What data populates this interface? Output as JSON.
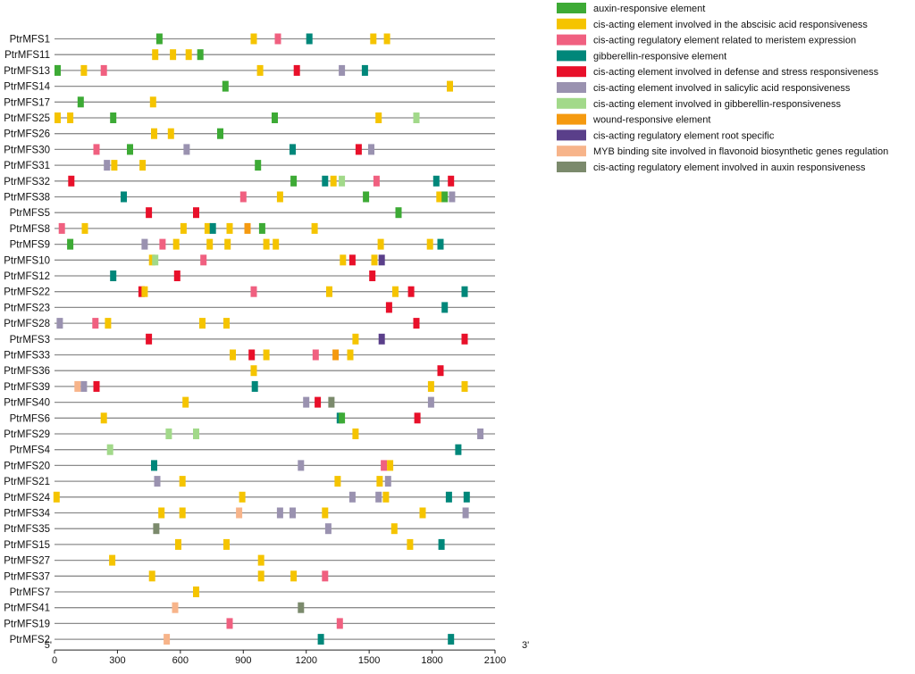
{
  "chart_data": {
    "type": "motif-map",
    "x_start_label": "5'",
    "x_end_label": "3'",
    "xlim": [
      0,
      2100
    ],
    "x_ticks": [
      0,
      300,
      600,
      900,
      1200,
      1500,
      1800,
      2100
    ],
    "legend": [
      {
        "id": "auxin",
        "label": "auxin-responsive element",
        "color": "#3daa35"
      },
      {
        "id": "aba",
        "label": "cis-acting element involved in the abscisic acid responsiveness",
        "color": "#f5c400"
      },
      {
        "id": "meristem",
        "label": "cis-acting regulatory element related to meristem expression",
        "color": "#f06080"
      },
      {
        "id": "gib",
        "label": "gibberellin-responsive element",
        "color": "#00877a"
      },
      {
        "id": "defense",
        "label": "cis-acting element involved in defense and stress responsiveness",
        "color": "#e8102a"
      },
      {
        "id": "sa",
        "label": "cis-acting element involved in salicylic acid responsiveness",
        "color": "#9a92b0"
      },
      {
        "id": "gibresp",
        "label": "cis-acting element involved in gibberellin-responsiveness",
        "color": "#a2d98a"
      },
      {
        "id": "wound",
        "label": "wound-responsive element",
        "color": "#f59a10"
      },
      {
        "id": "root",
        "label": "cis-acting regulatory element root specific",
        "color": "#5a3f8a"
      },
      {
        "id": "myb",
        "label": "MYB binding site involved in flavonoid biosynthetic genes regulation",
        "color": "#f7b48a"
      },
      {
        "id": "auxreg",
        "label": "cis-acting regulatory element involved in auxin responsiveness",
        "color": "#7b8a6c"
      }
    ],
    "genes": [
      {
        "name": "PtrMFS1",
        "motifs": [
          [
            500,
            "auxin"
          ],
          [
            950,
            "aba"
          ],
          [
            1065,
            "meristem"
          ],
          [
            1215,
            "gib"
          ],
          [
            1520,
            "aba"
          ],
          [
            1585,
            "aba"
          ]
        ]
      },
      {
        "name": "PtrMFS11",
        "motifs": [
          [
            480,
            "aba"
          ],
          [
            565,
            "aba"
          ],
          [
            640,
            "aba"
          ],
          [
            695,
            "auxin"
          ]
        ]
      },
      {
        "name": "PtrMFS13",
        "motifs": [
          [
            15,
            "auxin"
          ],
          [
            140,
            "aba"
          ],
          [
            235,
            "meristem"
          ],
          [
            980,
            "aba"
          ],
          [
            1155,
            "defense"
          ],
          [
            1370,
            "sa"
          ],
          [
            1480,
            "gib"
          ]
        ]
      },
      {
        "name": "PtrMFS14",
        "motifs": [
          [
            815,
            "auxin"
          ],
          [
            1885,
            "aba"
          ]
        ]
      },
      {
        "name": "PtrMFS17",
        "motifs": [
          [
            125,
            "auxin"
          ],
          [
            470,
            "aba"
          ]
        ]
      },
      {
        "name": "PtrMFS25",
        "motifs": [
          [
            15,
            "aba"
          ],
          [
            75,
            "aba"
          ],
          [
            280,
            "auxin"
          ],
          [
            1050,
            "auxin"
          ],
          [
            1545,
            "aba"
          ],
          [
            1725,
            "gibresp"
          ]
        ]
      },
      {
        "name": "PtrMFS26",
        "motifs": [
          [
            475,
            "aba"
          ],
          [
            555,
            "aba"
          ],
          [
            790,
            "auxin"
          ]
        ]
      },
      {
        "name": "PtrMFS30",
        "motifs": [
          [
            200,
            "meristem"
          ],
          [
            360,
            "auxin"
          ],
          [
            630,
            "sa"
          ],
          [
            1135,
            "gib"
          ],
          [
            1450,
            "defense"
          ],
          [
            1510,
            "sa"
          ]
        ]
      },
      {
        "name": "PtrMFS31",
        "motifs": [
          [
            250,
            "sa"
          ],
          [
            285,
            "aba"
          ],
          [
            420,
            "aba"
          ],
          [
            970,
            "auxin"
          ]
        ]
      },
      {
        "name": "PtrMFS32",
        "motifs": [
          [
            80,
            "defense"
          ],
          [
            1140,
            "auxin"
          ],
          [
            1290,
            "gib"
          ],
          [
            1330,
            "aba"
          ],
          [
            1370,
            "gibresp"
          ],
          [
            1535,
            "meristem"
          ],
          [
            1820,
            "gib"
          ],
          [
            1890,
            "defense"
          ]
        ]
      },
      {
        "name": "PtrMFS38",
        "motifs": [
          [
            330,
            "gib"
          ],
          [
            900,
            "meristem"
          ],
          [
            1075,
            "aba"
          ],
          [
            1485,
            "auxin"
          ],
          [
            1835,
            "aba"
          ],
          [
            1860,
            "auxin"
          ],
          [
            1895,
            "sa"
          ]
        ]
      },
      {
        "name": "PtrMFS5",
        "motifs": [
          [
            450,
            "defense"
          ],
          [
            675,
            "defense"
          ],
          [
            1640,
            "auxin"
          ]
        ]
      },
      {
        "name": "PtrMFS8",
        "motifs": [
          [
            35,
            "meristem"
          ],
          [
            145,
            "aba"
          ],
          [
            615,
            "aba"
          ],
          [
            730,
            "aba"
          ],
          [
            755,
            "gib"
          ],
          [
            835,
            "aba"
          ],
          [
            920,
            "wound"
          ],
          [
            990,
            "auxin"
          ],
          [
            1240,
            "aba"
          ]
        ]
      },
      {
        "name": "PtrMFS9",
        "motifs": [
          [
            75,
            "auxin"
          ],
          [
            430,
            "sa"
          ],
          [
            515,
            "meristem"
          ],
          [
            580,
            "aba"
          ],
          [
            740,
            "aba"
          ],
          [
            825,
            "aba"
          ],
          [
            1010,
            "aba"
          ],
          [
            1055,
            "aba"
          ],
          [
            1555,
            "aba"
          ],
          [
            1790,
            "aba"
          ],
          [
            1840,
            "gib"
          ]
        ]
      },
      {
        "name": "PtrMFS10",
        "motifs": [
          [
            465,
            "aba"
          ],
          [
            480,
            "gibresp"
          ],
          [
            710,
            "meristem"
          ],
          [
            1375,
            "aba"
          ],
          [
            1420,
            "defense"
          ],
          [
            1525,
            "aba"
          ],
          [
            1560,
            "root"
          ]
        ]
      },
      {
        "name": "PtrMFS12",
        "motifs": [
          [
            280,
            "gib"
          ],
          [
            585,
            "defense"
          ],
          [
            1515,
            "defense"
          ]
        ]
      },
      {
        "name": "PtrMFS22",
        "motifs": [
          [
            415,
            "defense"
          ],
          [
            430,
            "aba"
          ],
          [
            950,
            "meristem"
          ],
          [
            1310,
            "aba"
          ],
          [
            1625,
            "aba"
          ],
          [
            1700,
            "defense"
          ],
          [
            1955,
            "gib"
          ]
        ]
      },
      {
        "name": "PtrMFS23",
        "motifs": [
          [
            1595,
            "defense"
          ],
          [
            1860,
            "gib"
          ]
        ]
      },
      {
        "name": "PtrMFS28",
        "motifs": [
          [
            25,
            "sa"
          ],
          [
            195,
            "meristem"
          ],
          [
            255,
            "aba"
          ],
          [
            705,
            "aba"
          ],
          [
            820,
            "aba"
          ],
          [
            1725,
            "defense"
          ]
        ]
      },
      {
        "name": "PtrMFS3",
        "motifs": [
          [
            450,
            "defense"
          ],
          [
            1435,
            "aba"
          ],
          [
            1560,
            "root"
          ],
          [
            1955,
            "defense"
          ]
        ]
      },
      {
        "name": "PtrMFS33",
        "motifs": [
          [
            850,
            "aba"
          ],
          [
            940,
            "defense"
          ],
          [
            1010,
            "aba"
          ],
          [
            1245,
            "meristem"
          ],
          [
            1340,
            "wound"
          ],
          [
            1410,
            "aba"
          ]
        ]
      },
      {
        "name": "PtrMFS36",
        "motifs": [
          [
            950,
            "aba"
          ],
          [
            1840,
            "defense"
          ]
        ]
      },
      {
        "name": "PtrMFS39",
        "motifs": [
          [
            110,
            "myb"
          ],
          [
            140,
            "sa"
          ],
          [
            200,
            "defense"
          ],
          [
            955,
            "gib"
          ],
          [
            1795,
            "aba"
          ],
          [
            1955,
            "aba"
          ]
        ]
      },
      {
        "name": "PtrMFS40",
        "motifs": [
          [
            625,
            "aba"
          ],
          [
            1200,
            "sa"
          ],
          [
            1255,
            "defense"
          ],
          [
            1320,
            "auxreg"
          ],
          [
            1795,
            "sa"
          ]
        ]
      },
      {
        "name": "PtrMFS6",
        "motifs": [
          [
            235,
            "aba"
          ],
          [
            1360,
            "gib"
          ],
          [
            1370,
            "auxin"
          ],
          [
            1730,
            "defense"
          ]
        ]
      },
      {
        "name": "PtrMFS29",
        "motifs": [
          [
            545,
            "gibresp"
          ],
          [
            675,
            "gibresp"
          ],
          [
            1435,
            "aba"
          ],
          [
            2030,
            "sa"
          ]
        ]
      },
      {
        "name": "PtrMFS4",
        "motifs": [
          [
            265,
            "gibresp"
          ],
          [
            1925,
            "gib"
          ]
        ]
      },
      {
        "name": "PtrMFS20",
        "motifs": [
          [
            475,
            "gib"
          ],
          [
            1175,
            "sa"
          ],
          [
            1570,
            "meristem"
          ],
          [
            1600,
            "aba"
          ]
        ]
      },
      {
        "name": "PtrMFS21",
        "motifs": [
          [
            490,
            "sa"
          ],
          [
            610,
            "aba"
          ],
          [
            1350,
            "aba"
          ],
          [
            1550,
            "aba"
          ],
          [
            1590,
            "sa"
          ]
        ]
      },
      {
        "name": "PtrMFS24",
        "motifs": [
          [
            10,
            "aba"
          ],
          [
            895,
            "aba"
          ],
          [
            1420,
            "sa"
          ],
          [
            1545,
            "sa"
          ],
          [
            1580,
            "aba"
          ],
          [
            1880,
            "gib"
          ],
          [
            1965,
            "gib"
          ]
        ]
      },
      {
        "name": "PtrMFS34",
        "motifs": [
          [
            510,
            "aba"
          ],
          [
            610,
            "aba"
          ],
          [
            880,
            "myb"
          ],
          [
            1075,
            "sa"
          ],
          [
            1135,
            "sa"
          ],
          [
            1290,
            "aba"
          ],
          [
            1755,
            "aba"
          ],
          [
            1960,
            "sa"
          ]
        ]
      },
      {
        "name": "PtrMFS35",
        "motifs": [
          [
            485,
            "auxreg"
          ],
          [
            1305,
            "sa"
          ],
          [
            1620,
            "aba"
          ]
        ]
      },
      {
        "name": "PtrMFS15",
        "motifs": [
          [
            590,
            "aba"
          ],
          [
            820,
            "aba"
          ],
          [
            1695,
            "aba"
          ],
          [
            1845,
            "gib"
          ]
        ]
      },
      {
        "name": "PtrMFS27",
        "motifs": [
          [
            275,
            "aba"
          ],
          [
            985,
            "aba"
          ]
        ]
      },
      {
        "name": "PtrMFS37",
        "motifs": [
          [
            465,
            "aba"
          ],
          [
            985,
            "aba"
          ],
          [
            1140,
            "aba"
          ],
          [
            1290,
            "meristem"
          ]
        ]
      },
      {
        "name": "PtrMFS7",
        "motifs": [
          [
            675,
            "aba"
          ]
        ]
      },
      {
        "name": "PtrMFS41",
        "motifs": [
          [
            575,
            "myb"
          ],
          [
            1175,
            "auxreg"
          ]
        ]
      },
      {
        "name": "PtrMFS19",
        "motifs": [
          [
            835,
            "meristem"
          ],
          [
            1360,
            "meristem"
          ]
        ]
      },
      {
        "name": "PtrMFS2",
        "motifs": [
          [
            535,
            "myb"
          ],
          [
            1270,
            "gib"
          ],
          [
            1890,
            "gib"
          ]
        ]
      }
    ]
  }
}
